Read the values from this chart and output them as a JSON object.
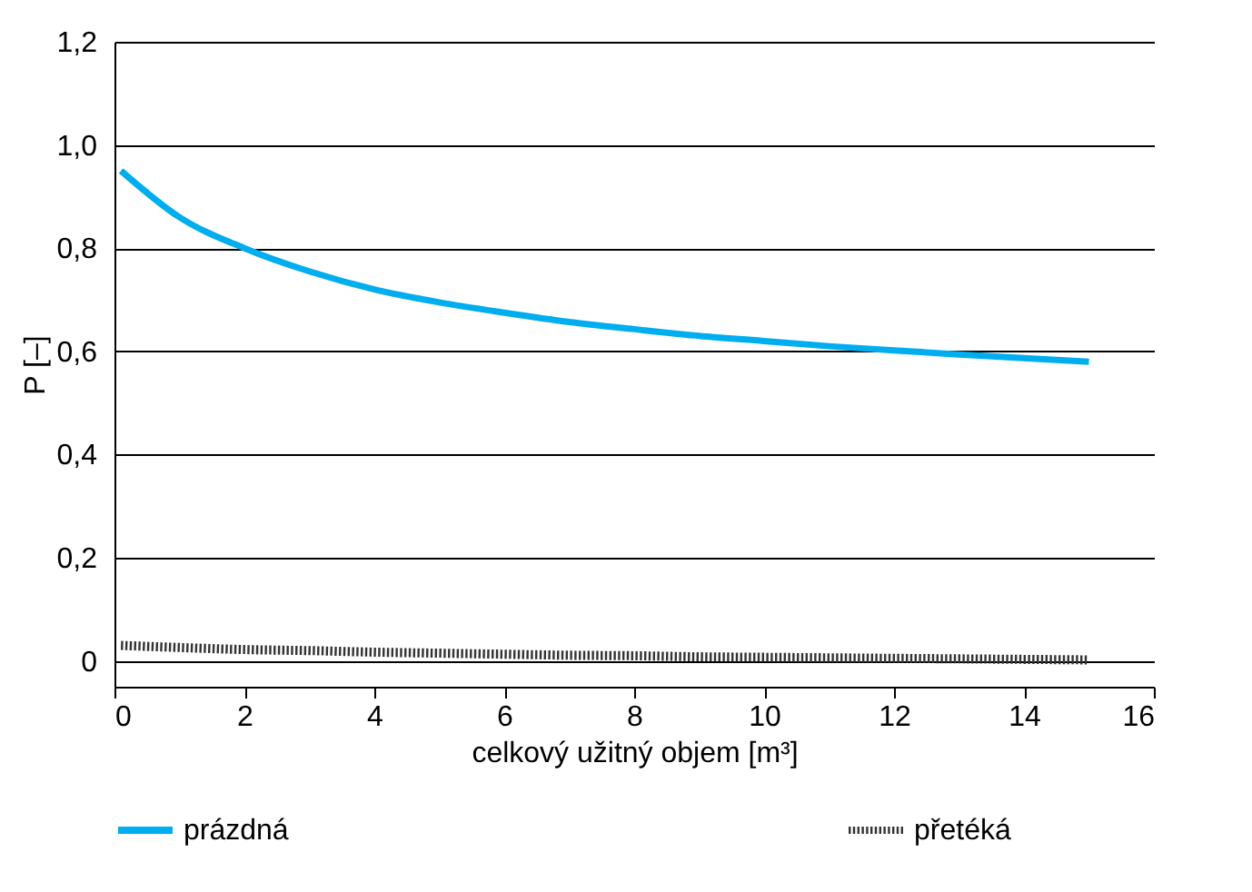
{
  "chart_data": {
    "type": "line",
    "xlabel": "celkový užitný objem [m³]",
    "ylabel": "P [–]",
    "x": [
      0.1,
      1,
      2,
      3,
      4,
      5,
      6,
      7,
      8,
      9,
      10,
      11,
      12,
      13,
      14,
      15
    ],
    "series": [
      {
        "name": "prázdná",
        "color": "#00aeef",
        "line_style": "solid",
        "values": [
          0.95,
          0.86,
          0.8,
          0.755,
          0.72,
          0.695,
          0.675,
          0.657,
          0.643,
          0.63,
          0.62,
          0.61,
          0.602,
          0.594,
          0.587,
          0.58
        ]
      },
      {
        "name": "přetéká",
        "color": "#333333",
        "line_style": "dotted",
        "values": [
          0.03,
          0.026,
          0.022,
          0.02,
          0.017,
          0.015,
          0.013,
          0.011,
          0.01,
          0.008,
          0.007,
          0.006,
          0.005,
          0.004,
          0.003,
          0.002
        ]
      }
    ],
    "xlim": [
      0,
      16
    ],
    "xticks": [
      0,
      2,
      4,
      6,
      8,
      10,
      12,
      14,
      16
    ],
    "ylim": [
      -0.05,
      1.2
    ],
    "yticks": [
      {
        "value": 0,
        "label": "0"
      },
      {
        "value": 0.2,
        "label": "0,2"
      },
      {
        "value": 0.4,
        "label": "0,4"
      },
      {
        "value": 0.6,
        "label": "0,6"
      },
      {
        "value": 0.8,
        "label": "0,8"
      },
      {
        "value": 1.0,
        "label": "1,0"
      },
      {
        "value": 1.2,
        "label": "1,2"
      }
    ],
    "grid": "y",
    "legend": "bottom",
    "marker": "none"
  }
}
